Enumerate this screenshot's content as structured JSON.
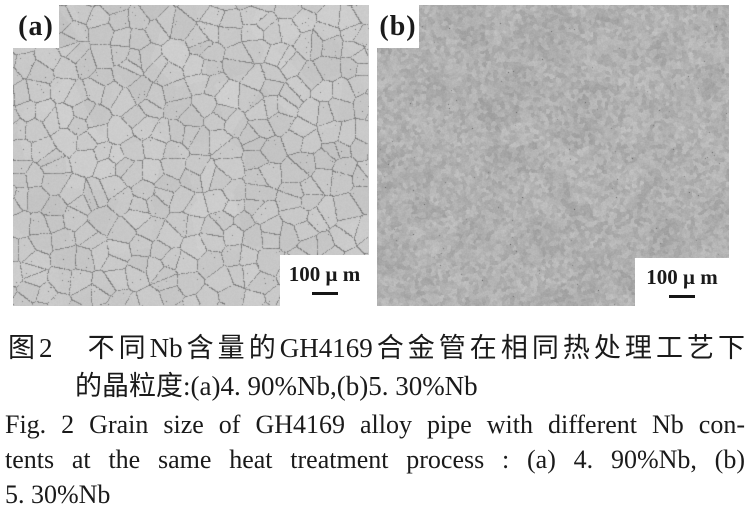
{
  "figure": {
    "panels": [
      {
        "label": "(a)",
        "scale_label": "100 μ m"
      },
      {
        "label": "(b)",
        "scale_label": "100 μ m"
      }
    ],
    "colors": {
      "background": "#ffffff",
      "caption_text": "#1a1a1a",
      "panel_a_base": "#c9c9c9",
      "panel_a_boundary": "#969696",
      "panel_b_base": "#b0b0b0"
    }
  },
  "caption_zh": {
    "line1": "图2　不同Nb含量的GH4169合金管在相同热处理工艺下",
    "line2": "的晶粒度:(a)4. 90%Nb,(b)5. 30%Nb"
  },
  "caption_en": {
    "line1": "Fig. 2  Grain size of GH4169 alloy pipe with different Nb con-",
    "line2": "tents at the same heat treatment process : (a) 4. 90%Nb, (b)",
    "line3": "5. 30%Nb"
  }
}
